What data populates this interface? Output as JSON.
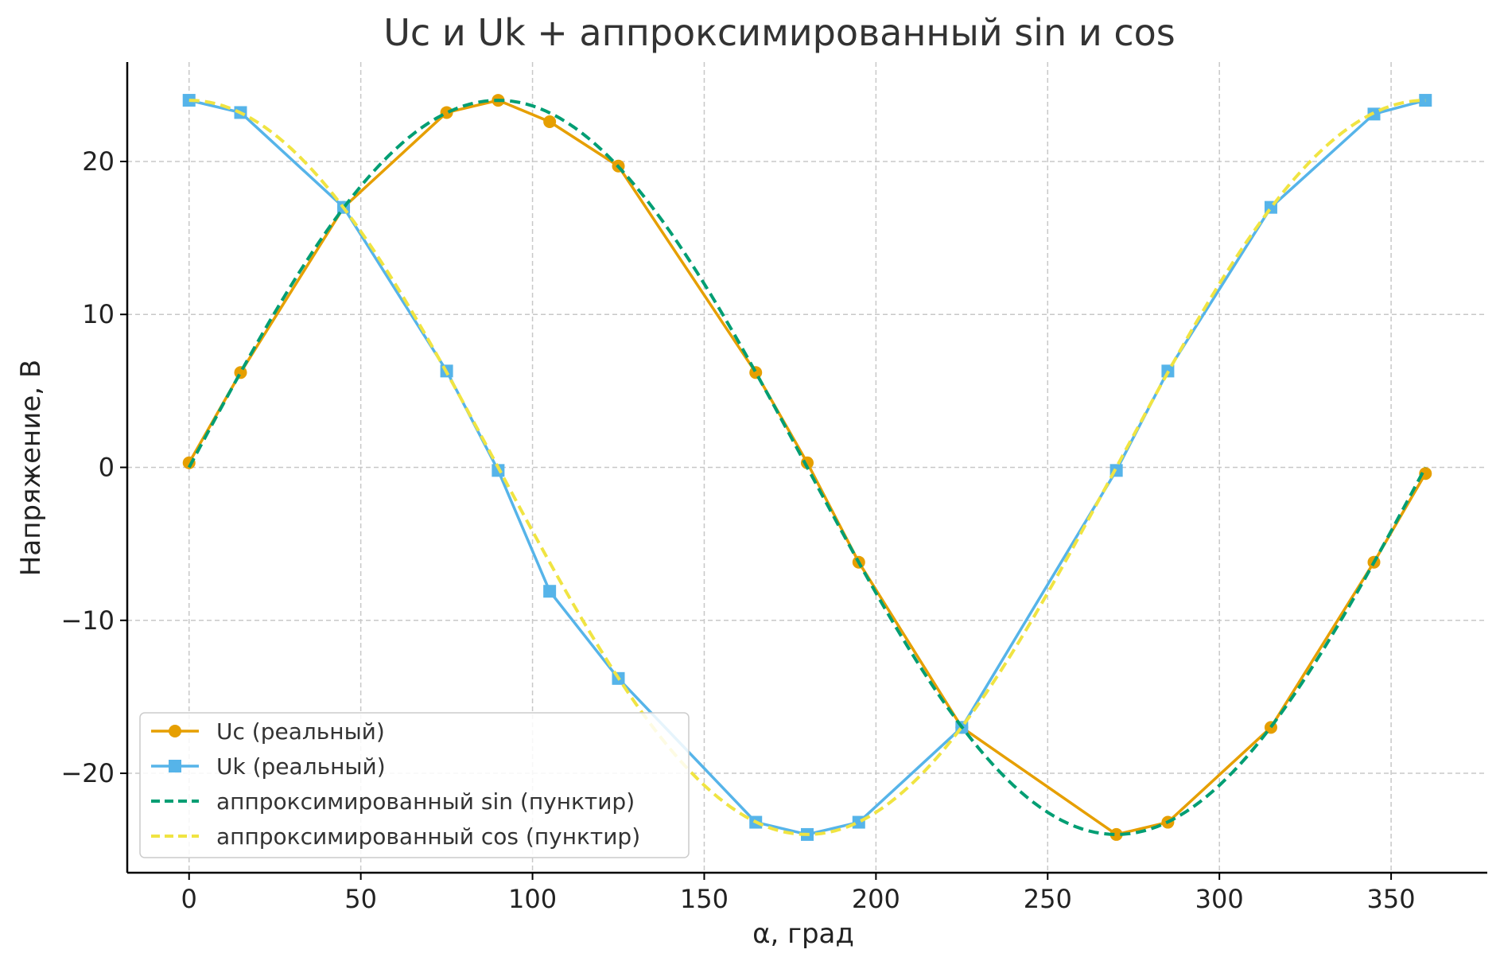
{
  "chart_data": {
    "type": "line",
    "title": "Uc и Uk + аппроксимированный sin и cos",
    "xlabel": "α, град",
    "ylabel": "Напряжение, В",
    "xlim": [
      -18,
      378
    ],
    "ylim": [
      -26.5,
      26.5
    ],
    "xticks": [
      0,
      50,
      100,
      150,
      200,
      250,
      300,
      350
    ],
    "yticks": [
      -20,
      -10,
      0,
      10,
      20
    ],
    "xtick_labels": [
      "0",
      "50",
      "100",
      "150",
      "200",
      "250",
      "300",
      "350"
    ],
    "ytick_labels": [
      "−20",
      "−10",
      "0",
      "10",
      "20"
    ],
    "grid": true,
    "legend_position": "lower-left",
    "series": [
      {
        "name": "Uc (реальный)",
        "color": "#E69F00",
        "style": "solid",
        "marker": "circle",
        "x": [
          0,
          15,
          45,
          75,
          90,
          105,
          125,
          165,
          180,
          195,
          225,
          270,
          285,
          315,
          345,
          360
        ],
        "y": [
          0.3,
          6.2,
          17.0,
          23.2,
          24.0,
          22.6,
          19.7,
          6.2,
          0.3,
          -6.2,
          -17.0,
          -24.0,
          -23.2,
          -17.0,
          -6.2,
          -0.4
        ]
      },
      {
        "name": "Uk (реальный)",
        "color": "#56B4E9",
        "style": "solid",
        "marker": "square",
        "x": [
          0,
          15,
          45,
          75,
          90,
          105,
          125,
          165,
          180,
          195,
          225,
          270,
          285,
          315,
          345,
          360
        ],
        "y": [
          24.0,
          23.2,
          17.0,
          6.3,
          -0.2,
          -8.1,
          -13.8,
          -23.2,
          -24.0,
          -23.2,
          -17.0,
          -0.2,
          6.3,
          17.0,
          23.1,
          24.0
        ]
      },
      {
        "name": "аппроксимированный sin (пунктир)",
        "color": "#009E73",
        "style": "dashed",
        "amplitude": 24,
        "function": "sin"
      },
      {
        "name": "аппроксимированный cos (пунктир)",
        "color": "#F0E442",
        "style": "dashed",
        "amplitude": 24,
        "function": "cos"
      }
    ]
  }
}
